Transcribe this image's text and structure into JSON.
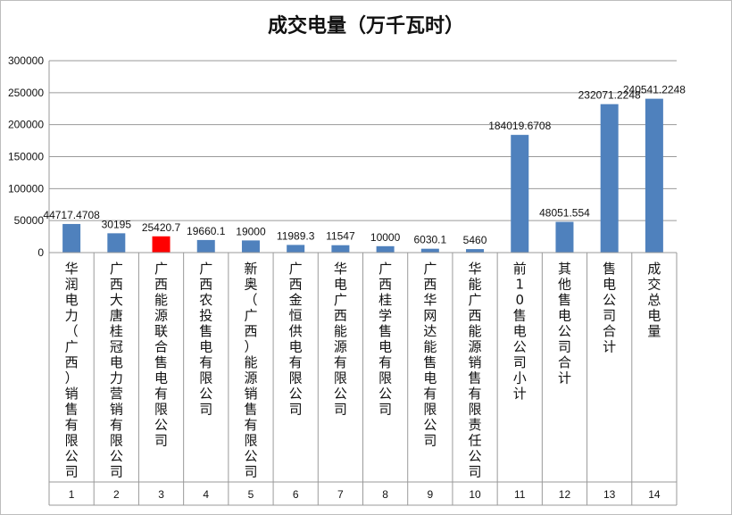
{
  "chart_data": {
    "type": "bar",
    "title": "成交电量（万千瓦时）",
    "ylim": [
      0,
      300000
    ],
    "yticks": [
      "0",
      "50000",
      "100000",
      "150000",
      "200000",
      "250000",
      "300000"
    ],
    "grid": true,
    "categories": [
      "华润电力（广西）销售有限公司",
      "广西大唐桂冠电力营销有限公司",
      "广西能源联合售电有限公司",
      "广西农投售电有限公司",
      "新奥（广西）能源销售有限公司",
      "广西金恒供电有限公司",
      "华电广西能源有限公司",
      "广西桂学售电有限公司",
      "广西华网达能售电有限公司",
      "华能广西能源销售有限责任公司",
      "前10售电公司小计",
      "其他售电公司合计",
      "售电公司合计",
      "成交总电量"
    ],
    "indices": [
      "1",
      "2",
      "3",
      "4",
      "5",
      "6",
      "7",
      "8",
      "9",
      "10",
      "11",
      "12",
      "13",
      "14"
    ],
    "values": [
      44717.4708,
      30195,
      25420.7,
      19660.1,
      19000,
      11989.3,
      11547,
      10000,
      6030.1,
      5460,
      184019.6708,
      48051.554,
      232071.2248,
      240541.2248
    ],
    "labels": [
      "44717.4708",
      "30195",
      "25420.7",
      "19660.1",
      "19000",
      "11989.3",
      "11547",
      "10000",
      "6030.1",
      "5460",
      "184019.6708",
      "48051.554",
      "232071.2248",
      "240541.2248"
    ],
    "colors": [
      "#4f81bd",
      "#4f81bd",
      "#ff0000",
      "#4f81bd",
      "#4f81bd",
      "#4f81bd",
      "#4f81bd",
      "#4f81bd",
      "#4f81bd",
      "#4f81bd",
      "#4f81bd",
      "#4f81bd",
      "#4f81bd",
      "#4f81bd"
    ],
    "bar_color": "#4f81bd",
    "highlight_color": "#ff0000"
  }
}
